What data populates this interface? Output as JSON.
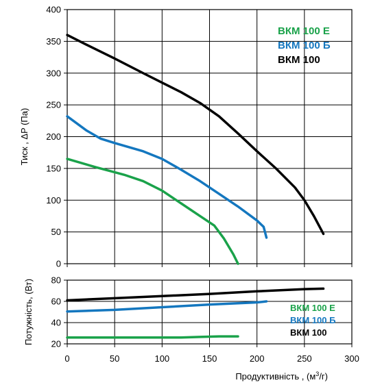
{
  "chart_data": [
    {
      "type": "line",
      "ylabel": "Тиск , ΔP (Па)",
      "xlim": [
        0,
        300
      ],
      "ylim": [
        0,
        400
      ],
      "xticks": [
        0,
        50,
        100,
        150,
        200,
        250,
        300
      ],
      "yticks": [
        0,
        50,
        100,
        150,
        200,
        250,
        300,
        350,
        400
      ],
      "grid": true,
      "legend_position": "top-right",
      "series": [
        {
          "name": "ВКМ 100 Е",
          "color": "#1aa24a",
          "x": [
            0,
            30,
            60,
            80,
            100,
            120,
            140,
            155,
            165,
            175,
            180
          ],
          "y": [
            165,
            152,
            140,
            130,
            115,
            95,
            75,
            60,
            40,
            15,
            0
          ]
        },
        {
          "name": "ВКМ 100 Б",
          "color": "#1477bf",
          "x": [
            0,
            20,
            35,
            50,
            80,
            100,
            120,
            140,
            160,
            180,
            200,
            207,
            210
          ],
          "y": [
            232,
            210,
            197,
            190,
            177,
            165,
            148,
            130,
            110,
            90,
            68,
            58,
            41
          ]
        },
        {
          "name": "ВКМ 100",
          "color": "#000000",
          "x": [
            0,
            20,
            50,
            80,
            100,
            120,
            140,
            160,
            180,
            200,
            220,
            240,
            250,
            260,
            270
          ],
          "y": [
            360,
            345,
            323,
            300,
            285,
            270,
            253,
            232,
            205,
            177,
            150,
            120,
            100,
            75,
            47
          ]
        }
      ]
    },
    {
      "type": "line",
      "xlabel": "Продуктивність , (м³/г)",
      "ylabel": "Потужність, (Вт)",
      "xlim": [
        0,
        300
      ],
      "ylim": [
        20,
        80
      ],
      "xticks": [
        0,
        50,
        100,
        150,
        200,
        250,
        300
      ],
      "yticks": [
        20,
        40,
        60,
        80
      ],
      "grid": true,
      "legend_position": "right",
      "series": [
        {
          "name": "ВКМ 100 Е",
          "color": "#1aa24a",
          "x": [
            0,
            50,
            100,
            120,
            140,
            160,
            180
          ],
          "y": [
            26,
            26,
            26,
            26,
            26.5,
            27,
            27
          ]
        },
        {
          "name": "ВКМ 100 Б",
          "color": "#1477bf",
          "x": [
            0,
            50,
            100,
            150,
            200,
            210
          ],
          "y": [
            50.5,
            52,
            54.5,
            57,
            59,
            60
          ]
        },
        {
          "name": "ВКМ 100",
          "color": "#000000",
          "x": [
            0,
            50,
            100,
            150,
            200,
            250,
            270
          ],
          "y": [
            61,
            63,
            65,
            67,
            69.5,
            71.5,
            72
          ]
        }
      ]
    }
  ]
}
